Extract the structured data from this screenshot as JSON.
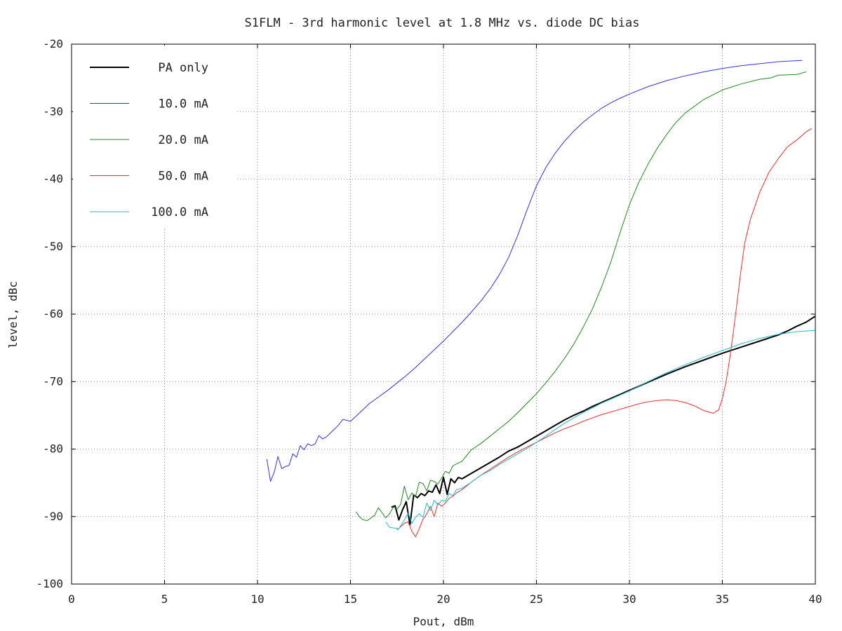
{
  "chart_data": {
    "type": "line",
    "title": "S1FLM - 3rd harmonic level at 1.8 MHz vs. diode DC bias",
    "xlabel": "Pout, dBm",
    "ylabel": "level, dBc",
    "xlim": [
      0,
      40
    ],
    "ylim": [
      -100,
      -20
    ],
    "xticks": [
      0,
      5,
      10,
      15,
      20,
      25,
      30,
      35,
      40
    ],
    "yticks": [
      -100,
      -90,
      -80,
      -70,
      -60,
      -50,
      -40,
      -30,
      -20
    ],
    "grid": true,
    "legend_position": "top-left",
    "series": [
      {
        "name": "PA only",
        "color": "#000000",
        "line_width": 2,
        "points": [
          [
            17.2,
            -88.6
          ],
          [
            17.4,
            -88.4
          ],
          [
            17.6,
            -90.5
          ],
          [
            17.8,
            -89.0
          ],
          [
            18.0,
            -87.8
          ],
          [
            18.2,
            -91.2
          ],
          [
            18.4,
            -86.8
          ],
          [
            18.6,
            -87.2
          ],
          [
            18.8,
            -86.6
          ],
          [
            19.0,
            -86.9
          ],
          [
            19.2,
            -86.2
          ],
          [
            19.4,
            -86.4
          ],
          [
            19.6,
            -85.3
          ],
          [
            19.8,
            -86.6
          ],
          [
            20.0,
            -84.2
          ],
          [
            20.2,
            -86.7
          ],
          [
            20.4,
            -84.4
          ],
          [
            20.6,
            -85.0
          ],
          [
            20.8,
            -84.2
          ],
          [
            21.0,
            -84.4
          ],
          [
            21.5,
            -83.6
          ],
          [
            22.0,
            -82.8
          ],
          [
            22.5,
            -82.0
          ],
          [
            23.0,
            -81.2
          ],
          [
            23.5,
            -80.3
          ],
          [
            24.0,
            -79.7
          ],
          [
            24.5,
            -78.9
          ],
          [
            25.0,
            -78.1
          ],
          [
            25.5,
            -77.3
          ],
          [
            26.0,
            -76.5
          ],
          [
            26.5,
            -75.7
          ],
          [
            27.0,
            -75.0
          ],
          [
            27.5,
            -74.4
          ],
          [
            28.0,
            -73.7
          ],
          [
            28.5,
            -73.1
          ],
          [
            29.0,
            -72.5
          ],
          [
            29.5,
            -71.9
          ],
          [
            30.0,
            -71.3
          ],
          [
            31.0,
            -70.1
          ],
          [
            32.0,
            -68.9
          ],
          [
            33.0,
            -67.8
          ],
          [
            34.0,
            -66.8
          ],
          [
            35.0,
            -65.8
          ],
          [
            36.0,
            -64.9
          ],
          [
            37.0,
            -64.0
          ],
          [
            38.0,
            -63.1
          ],
          [
            38.5,
            -62.5
          ],
          [
            39.0,
            -61.8
          ],
          [
            39.5,
            -61.2
          ],
          [
            40.0,
            -60.3
          ]
        ]
      },
      {
        "name": "10.0 mA",
        "color": "#3333dd",
        "line_width": 1,
        "points": [
          [
            10.5,
            -81.5
          ],
          [
            10.7,
            -84.8
          ],
          [
            10.9,
            -83.4
          ],
          [
            11.1,
            -81.1
          ],
          [
            11.3,
            -82.9
          ],
          [
            11.5,
            -82.6
          ],
          [
            11.7,
            -82.4
          ],
          [
            11.9,
            -80.7
          ],
          [
            12.1,
            -81.2
          ],
          [
            12.3,
            -79.5
          ],
          [
            12.5,
            -80.1
          ],
          [
            12.7,
            -79.2
          ],
          [
            12.9,
            -79.5
          ],
          [
            13.1,
            -79.2
          ],
          [
            13.3,
            -78.0
          ],
          [
            13.5,
            -78.5
          ],
          [
            13.7,
            -78.2
          ],
          [
            14.0,
            -77.4
          ],
          [
            14.3,
            -76.6
          ],
          [
            14.6,
            -75.6
          ],
          [
            15.0,
            -75.9
          ],
          [
            15.5,
            -74.6
          ],
          [
            16.0,
            -73.3
          ],
          [
            16.5,
            -72.3
          ],
          [
            17.0,
            -71.3
          ],
          [
            17.5,
            -70.2
          ],
          [
            18.0,
            -69.1
          ],
          [
            18.5,
            -67.9
          ],
          [
            19.0,
            -66.6
          ],
          [
            19.5,
            -65.3
          ],
          [
            20.0,
            -64.0
          ],
          [
            20.5,
            -62.6
          ],
          [
            21.0,
            -61.2
          ],
          [
            21.5,
            -59.7
          ],
          [
            22.0,
            -58.1
          ],
          [
            22.5,
            -56.3
          ],
          [
            23.0,
            -54.2
          ],
          [
            23.5,
            -51.6
          ],
          [
            24.0,
            -48.3
          ],
          [
            24.5,
            -44.5
          ],
          [
            25.0,
            -41.0
          ],
          [
            25.5,
            -38.3
          ],
          [
            26.0,
            -36.2
          ],
          [
            26.5,
            -34.4
          ],
          [
            27.0,
            -32.9
          ],
          [
            27.5,
            -31.6
          ],
          [
            28.0,
            -30.5
          ],
          [
            28.5,
            -29.5
          ],
          [
            29.0,
            -28.7
          ],
          [
            29.5,
            -28.0
          ],
          [
            30.0,
            -27.4
          ],
          [
            31.0,
            -26.3
          ],
          [
            32.0,
            -25.4
          ],
          [
            33.0,
            -24.7
          ],
          [
            34.0,
            -24.1
          ],
          [
            35.0,
            -23.6
          ],
          [
            36.0,
            -23.2
          ],
          [
            37.0,
            -22.9
          ],
          [
            38.0,
            -22.6
          ],
          [
            39.3,
            -22.4
          ]
        ]
      },
      {
        "name": "20.0 mA",
        "color": "#228822",
        "line_width": 1,
        "points": [
          [
            15.3,
            -89.3
          ],
          [
            15.5,
            -90.1
          ],
          [
            15.7,
            -90.5
          ],
          [
            15.9,
            -90.6
          ],
          [
            16.1,
            -90.2
          ],
          [
            16.3,
            -89.8
          ],
          [
            16.5,
            -88.7
          ],
          [
            16.9,
            -90.2
          ],
          [
            17.1,
            -89.6
          ],
          [
            17.3,
            -88.6
          ],
          [
            17.5,
            -88.9
          ],
          [
            17.7,
            -88.2
          ],
          [
            17.9,
            -85.5
          ],
          [
            18.1,
            -87.5
          ],
          [
            18.3,
            -86.5
          ],
          [
            18.5,
            -87.0
          ],
          [
            18.7,
            -84.9
          ],
          [
            18.9,
            -85.1
          ],
          [
            19.1,
            -86.2
          ],
          [
            19.3,
            -84.6
          ],
          [
            19.5,
            -84.8
          ],
          [
            19.7,
            -85.2
          ],
          [
            19.9,
            -84.3
          ],
          [
            20.1,
            -83.3
          ],
          [
            20.3,
            -83.6
          ],
          [
            20.5,
            -82.5
          ],
          [
            20.7,
            -82.2
          ],
          [
            21.0,
            -81.8
          ],
          [
            21.5,
            -80.1
          ],
          [
            22.0,
            -79.2
          ],
          [
            22.5,
            -78.1
          ],
          [
            23.0,
            -77.0
          ],
          [
            23.5,
            -75.9
          ],
          [
            24.0,
            -74.6
          ],
          [
            24.5,
            -73.2
          ],
          [
            25.0,
            -71.8
          ],
          [
            25.5,
            -70.2
          ],
          [
            26.0,
            -68.5
          ],
          [
            26.5,
            -66.6
          ],
          [
            27.0,
            -64.5
          ],
          [
            27.5,
            -62.0
          ],
          [
            28.0,
            -59.3
          ],
          [
            28.5,
            -56.0
          ],
          [
            29.0,
            -52.3
          ],
          [
            29.5,
            -47.9
          ],
          [
            30.0,
            -43.8
          ],
          [
            30.5,
            -40.5
          ],
          [
            31.0,
            -37.8
          ],
          [
            31.5,
            -35.4
          ],
          [
            32.0,
            -33.4
          ],
          [
            32.5,
            -31.6
          ],
          [
            33.0,
            -30.2
          ],
          [
            34.0,
            -28.2
          ],
          [
            35.0,
            -26.8
          ],
          [
            36.0,
            -25.9
          ],
          [
            37.0,
            -25.2
          ],
          [
            37.6,
            -25.0
          ],
          [
            38.0,
            -24.6
          ],
          [
            39.0,
            -24.5
          ],
          [
            39.5,
            -24.1
          ]
        ]
      },
      {
        "name": "50.0 mA",
        "color": "#e83030",
        "line_width": 1,
        "points": [
          [
            17.5,
            -92.0
          ],
          [
            17.7,
            -91.5
          ],
          [
            17.9,
            -91.0
          ],
          [
            18.1,
            -90.8
          ],
          [
            18.3,
            -92.2
          ],
          [
            18.5,
            -93.0
          ],
          [
            18.7,
            -91.8
          ],
          [
            18.9,
            -90.4
          ],
          [
            19.1,
            -89.6
          ],
          [
            19.3,
            -88.5
          ],
          [
            19.5,
            -90.0
          ],
          [
            19.7,
            -88.0
          ],
          [
            19.9,
            -88.5
          ],
          [
            20.1,
            -88.0
          ],
          [
            20.3,
            -87.3
          ],
          [
            20.5,
            -87.0
          ],
          [
            20.7,
            -86.5
          ],
          [
            21.0,
            -86.0
          ],
          [
            21.5,
            -84.9
          ],
          [
            22.0,
            -83.9
          ],
          [
            22.5,
            -83.0
          ],
          [
            23.0,
            -82.1
          ],
          [
            23.5,
            -81.2
          ],
          [
            24.0,
            -80.4
          ],
          [
            24.5,
            -79.7
          ],
          [
            25.0,
            -79.0
          ],
          [
            25.5,
            -78.3
          ],
          [
            26.0,
            -77.6
          ],
          [
            26.5,
            -77.0
          ],
          [
            27.0,
            -76.5
          ],
          [
            27.5,
            -75.9
          ],
          [
            28.0,
            -75.4
          ],
          [
            28.5,
            -74.9
          ],
          [
            29.0,
            -74.5
          ],
          [
            29.5,
            -74.1
          ],
          [
            30.0,
            -73.7
          ],
          [
            30.5,
            -73.3
          ],
          [
            31.0,
            -73.0
          ],
          [
            31.5,
            -72.8
          ],
          [
            32.0,
            -72.7
          ],
          [
            32.5,
            -72.8
          ],
          [
            33.0,
            -73.1
          ],
          [
            33.5,
            -73.6
          ],
          [
            34.0,
            -74.3
          ],
          [
            34.5,
            -74.7
          ],
          [
            34.8,
            -74.2
          ],
          [
            35.0,
            -72.5
          ],
          [
            35.2,
            -70.0
          ],
          [
            35.4,
            -66.5
          ],
          [
            35.6,
            -62.5
          ],
          [
            35.8,
            -58.0
          ],
          [
            36.0,
            -53.5
          ],
          [
            36.2,
            -49.5
          ],
          [
            36.5,
            -46.0
          ],
          [
            37.0,
            -42.0
          ],
          [
            37.5,
            -39.0
          ],
          [
            38.0,
            -37.0
          ],
          [
            38.5,
            -35.2
          ],
          [
            39.0,
            -34.2
          ],
          [
            39.5,
            -33.0
          ],
          [
            39.8,
            -32.5
          ]
        ]
      },
      {
        "name": "100.0 mA",
        "color": "#22bbcc",
        "line_width": 1,
        "points": [
          [
            16.9,
            -90.8
          ],
          [
            17.1,
            -91.6
          ],
          [
            17.6,
            -91.8
          ],
          [
            17.9,
            -90.5
          ],
          [
            18.1,
            -89.5
          ],
          [
            18.3,
            -91.0
          ],
          [
            18.5,
            -90.1
          ],
          [
            18.7,
            -89.6
          ],
          [
            18.9,
            -90.1
          ],
          [
            19.1,
            -88.0
          ],
          [
            19.3,
            -89.1
          ],
          [
            19.5,
            -87.6
          ],
          [
            19.7,
            -88.3
          ],
          [
            19.9,
            -87.6
          ],
          [
            20.1,
            -87.7
          ],
          [
            20.3,
            -86.6
          ],
          [
            20.5,
            -86.9
          ],
          [
            20.7,
            -86.0
          ],
          [
            21.0,
            -85.8
          ],
          [
            21.5,
            -84.9
          ],
          [
            22.0,
            -83.9
          ],
          [
            22.5,
            -83.2
          ],
          [
            23.0,
            -82.3
          ],
          [
            23.5,
            -81.5
          ],
          [
            24.0,
            -80.7
          ],
          [
            24.5,
            -79.9
          ],
          [
            25.0,
            -79.0
          ],
          [
            25.5,
            -78.1
          ],
          [
            26.0,
            -77.1
          ],
          [
            26.5,
            -76.2
          ],
          [
            27.0,
            -75.4
          ],
          [
            27.5,
            -74.6
          ],
          [
            28.0,
            -73.9
          ],
          [
            28.5,
            -73.2
          ],
          [
            29.0,
            -72.6
          ],
          [
            29.5,
            -72.0
          ],
          [
            30.0,
            -71.4
          ],
          [
            31.0,
            -70.0
          ],
          [
            32.0,
            -68.7
          ],
          [
            33.0,
            -67.5
          ],
          [
            34.0,
            -66.4
          ],
          [
            35.0,
            -65.4
          ],
          [
            36.0,
            -64.4
          ],
          [
            37.0,
            -63.6
          ],
          [
            38.0,
            -63.0
          ],
          [
            39.0,
            -62.6
          ],
          [
            40.0,
            -62.4
          ]
        ]
      }
    ]
  }
}
